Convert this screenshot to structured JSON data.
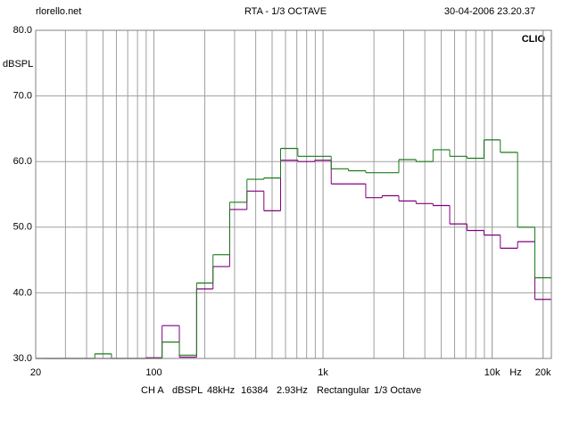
{
  "header": {
    "left": "rlorello.net",
    "title": "RTA - 1/3 OCTAVE",
    "date": "30-04-2006 23.20.37"
  },
  "brand": "CLIO",
  "footer": [
    "CH A",
    "dBSPL",
    "48kHz",
    "16384",
    "2.93Hz",
    "Rectangular",
    "1/3 Octave"
  ],
  "chart_data": {
    "type": "step",
    "y_label": "dBSPL",
    "x_unit": "Hz",
    "x": [
      20,
      25,
      31.5,
      40,
      50,
      63,
      80,
      100,
      125,
      160,
      200,
      250,
      315,
      400,
      500,
      630,
      800,
      1000,
      1250,
      1600,
      2000,
      2500,
      3150,
      4000,
      5000,
      6300,
      8000,
      10000,
      12500,
      16000,
      20000
    ],
    "series": [
      {
        "color": "#800080",
        "values": [
          30,
          30,
          30,
          30,
          30,
          30,
          30,
          30.1,
          35,
          30.2,
          40.6,
          44,
          52.7,
          55.5,
          52.5,
          60.2,
          60,
          60.2,
          56.6,
          56.6,
          54.5,
          54.8,
          54,
          53.6,
          53.3,
          50.5,
          49.5,
          48.8,
          46.8,
          47.8,
          39
        ]
      },
      {
        "color": "#1a7a1a",
        "values": [
          30,
          30,
          30,
          30,
          30.7,
          30,
          30,
          30,
          32.5,
          30.5,
          41.5,
          45.8,
          53.8,
          57.3,
          57.5,
          62,
          60.8,
          60.8,
          58.9,
          58.6,
          58.3,
          58.3,
          60.3,
          60,
          61.8,
          60.8,
          60.5,
          63.3,
          61.4,
          50,
          42.3
        ]
      }
    ],
    "xlog": true,
    "xlim": [
      20,
      22400
    ],
    "xticks": [
      20,
      100,
      {
        "value": 1000,
        "label": "1k"
      },
      {
        "value": 10000,
        "label": "10k"
      },
      {
        "value": 20000,
        "label": "20k"
      }
    ],
    "ylim": [
      30,
      80
    ],
    "yticks": [
      {
        "value": 30,
        "label": "30.0"
      },
      {
        "value": 40,
        "label": "40.0"
      },
      {
        "value": 50,
        "label": "50.0"
      },
      {
        "value": 60,
        "label": "60.0"
      },
      {
        "value": 70,
        "label": "70.0"
      },
      {
        "value": 80,
        "label": "80.0"
      }
    ],
    "grid": true
  }
}
